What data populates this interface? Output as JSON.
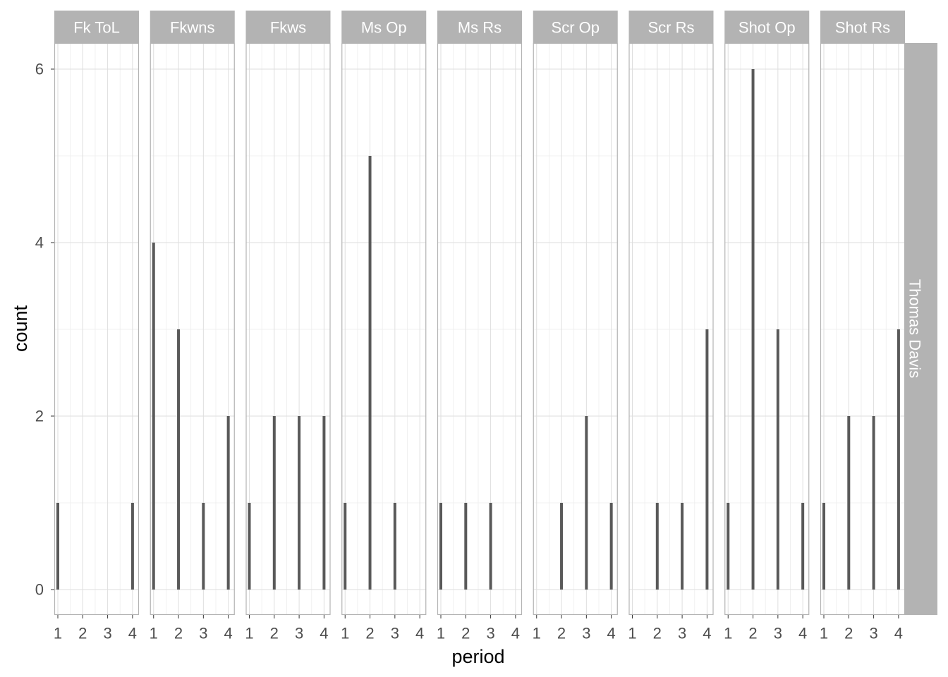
{
  "chart_data": {
    "type": "bar",
    "xlabel": "period",
    "ylabel": "count",
    "row_facet": "Thomas Davis",
    "x_ticks": [
      1,
      2,
      3,
      4
    ],
    "y_ticks": [
      0,
      2,
      4,
      6
    ],
    "grid": true,
    "bar_color": "#595959",
    "strip_color": "#b3b3b3",
    "panels": [
      {
        "name": "Fk ToL",
        "x": [
          1,
          4
        ],
        "values": [
          1,
          1
        ]
      },
      {
        "name": "Fkwns",
        "x": [
          1,
          2,
          3,
          4
        ],
        "values": [
          4,
          3,
          1,
          2
        ]
      },
      {
        "name": "Fkws",
        "x": [
          1,
          2,
          3,
          4
        ],
        "values": [
          1,
          2,
          2,
          2
        ]
      },
      {
        "name": "Ms Op",
        "x": [
          1,
          2,
          3
        ],
        "values": [
          1,
          5,
          1
        ]
      },
      {
        "name": "Ms Rs",
        "x": [
          1,
          2,
          3
        ],
        "values": [
          1,
          1,
          1
        ]
      },
      {
        "name": "Scr Op",
        "x": [
          2,
          3,
          4
        ],
        "values": [
          1,
          2,
          1
        ]
      },
      {
        "name": "Scr Rs",
        "x": [
          2,
          3,
          4
        ],
        "values": [
          1,
          1,
          3
        ]
      },
      {
        "name": "Shot Op",
        "x": [
          1,
          2,
          3,
          4
        ],
        "values": [
          1,
          6,
          3,
          1
        ]
      },
      {
        "name": "Shot Rs",
        "x": [
          1,
          2,
          3,
          4
        ],
        "values": [
          1,
          2,
          2,
          3
        ]
      }
    ]
  }
}
